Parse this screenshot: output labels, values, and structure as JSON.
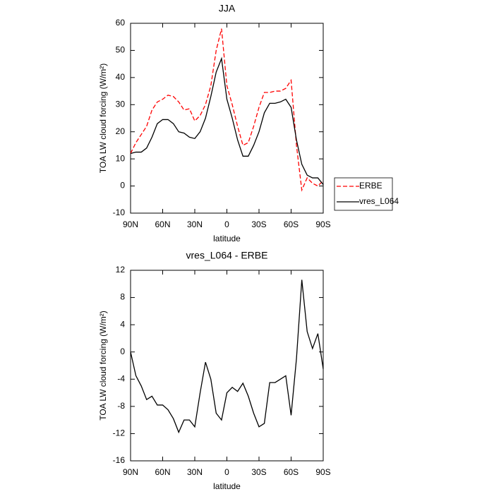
{
  "chart_data": [
    {
      "type": "line",
      "title": "JJA",
      "xlabel": "latitude",
      "ylabel": "TOA LW cloud forcing (W/m²)",
      "x": [
        90,
        85,
        80,
        75,
        70,
        65,
        60,
        55,
        50,
        45,
        40,
        35,
        30,
        25,
        20,
        15,
        10,
        5,
        0,
        -5,
        -10,
        -15,
        -20,
        -25,
        -30,
        -35,
        -40,
        -45,
        -50,
        -55,
        -60,
        -65,
        -70,
        -75,
        -80,
        -85,
        -90
      ],
      "series": [
        {
          "name": "ERBE",
          "color": "#ff0000",
          "line_style": "dashed",
          "values": [
            12,
            16,
            19,
            22,
            28,
            31,
            32,
            33.5,
            33,
            31,
            28,
            28.5,
            24,
            26,
            30,
            37,
            50,
            58,
            37,
            30,
            22,
            15,
            16,
            22,
            29,
            34.5,
            34.5,
            35,
            35,
            36,
            39,
            15,
            -1.5,
            3,
            1,
            0,
            2
          ]
        },
        {
          "name": "vres_L064",
          "color": "#000000",
          "line_style": "solid",
          "values": [
            12,
            12.5,
            12.5,
            14,
            18,
            23,
            24.5,
            24.5,
            23,
            20,
            19.5,
            18,
            17.5,
            20,
            25,
            33,
            42,
            47,
            32,
            25,
            17,
            11,
            11,
            15,
            20,
            27,
            30.5,
            30.5,
            31,
            32,
            29,
            17,
            8,
            4,
            3,
            3,
            0.5
          ]
        }
      ],
      "xlim": [
        90,
        -90
      ],
      "xticks": [
        {
          "value": 90,
          "label": "90N"
        },
        {
          "value": 60,
          "label": "60N"
        },
        {
          "value": 30,
          "label": "30N"
        },
        0,
        {
          "value": -30,
          "label": "30S"
        },
        {
          "value": -60,
          "label": "60S"
        },
        {
          "value": -90,
          "label": "90S"
        }
      ],
      "ylim": [
        -10,
        60
      ],
      "yticks": [
        -10,
        0,
        10,
        20,
        30,
        40,
        50,
        60
      ],
      "legend": "outside-right-bottom"
    },
    {
      "type": "line",
      "title": "vres_L064 - ERBE",
      "xlabel": "latitude",
      "ylabel": "TOA LW cloud forcing (W/m²)",
      "x": [
        90,
        85,
        80,
        75,
        70,
        65,
        60,
        55,
        50,
        45,
        40,
        35,
        30,
        25,
        20,
        15,
        10,
        5,
        0,
        -5,
        -10,
        -15,
        -20,
        -25,
        -30,
        -35,
        -40,
        -45,
        -50,
        -55,
        -60,
        -65,
        -70,
        -75,
        -80,
        -85,
        -90
      ],
      "series": [
        {
          "color": "#000000",
          "line_style": "solid",
          "values": [
            0,
            -3.5,
            -5,
            -7,
            -6.5,
            -7.8,
            -7.8,
            -8.5,
            -9.8,
            -11.8,
            -10,
            -10,
            -11,
            -6,
            -1.5,
            -4,
            -9,
            -10,
            -6,
            -5.2,
            -5.8,
            -4.6,
            -6.5,
            -9,
            -11,
            -10.5,
            -4.5,
            -4.5,
            -4,
            -3.5,
            -9.3,
            -1,
            10.6,
            3,
            0.5,
            2.7,
            -2.5
          ]
        }
      ],
      "xlim": [
        90,
        -90
      ],
      "xticks": [
        {
          "value": 90,
          "label": "90N"
        },
        {
          "value": 60,
          "label": "60N"
        },
        {
          "value": 30,
          "label": "30N"
        },
        0,
        {
          "value": -30,
          "label": "30S"
        },
        {
          "value": -60,
          "label": "60S"
        },
        {
          "value": -90,
          "label": "90S"
        }
      ],
      "ylim": [
        -16,
        12
      ],
      "yticks": [
        -16,
        -12,
        -8,
        -4,
        0,
        4,
        8,
        12
      ]
    }
  ]
}
